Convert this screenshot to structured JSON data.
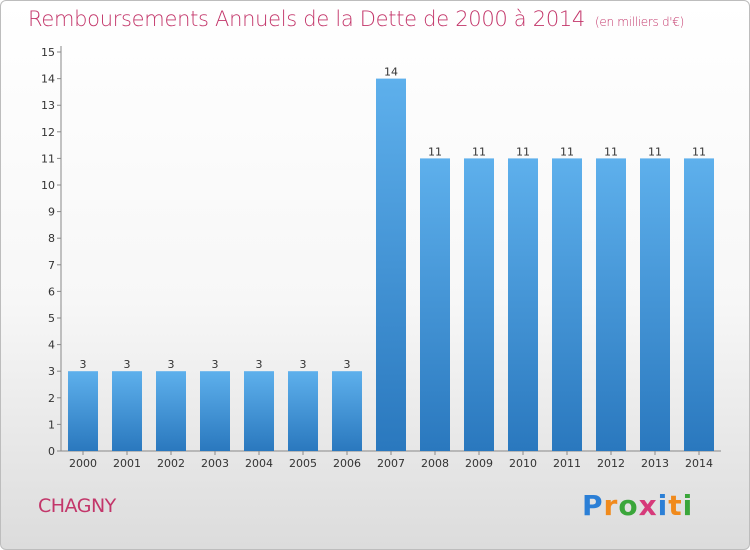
{
  "title": "Remboursements Annuels de la Dette de 2000 à 2014",
  "unit_note": "(en milliers d'€)",
  "city": "CHAGNY",
  "logo": {
    "text": "Proxiti",
    "letters": [
      {
        "ch": "P",
        "color": "#2b7fd6"
      },
      {
        "ch": "r",
        "color": "#f08a1c"
      },
      {
        "ch": "o",
        "color": "#3aa63a"
      },
      {
        "ch": "x",
        "color": "#d63a7a"
      },
      {
        "ch": "i",
        "color": "#2b7fd6"
      },
      {
        "ch": "t",
        "color": "#f08a1c"
      },
      {
        "ch": "i",
        "color": "#3aa63a"
      }
    ]
  },
  "colors": {
    "bar_light": "#5eb0ec",
    "bar_dark": "#2a78be",
    "title": "#c3366a",
    "axis": "#333333"
  },
  "chart_data": {
    "type": "bar",
    "title": "Remboursements Annuels de la Dette de 2000 à 2014",
    "ylabel": "",
    "xlabel": "",
    "categories": [
      "2000",
      "2001",
      "2002",
      "2003",
      "2004",
      "2005",
      "2006",
      "2007",
      "2008",
      "2009",
      "2010",
      "2011",
      "2012",
      "2013",
      "2014"
    ],
    "values": [
      3,
      3,
      3,
      3,
      3,
      3,
      3,
      14,
      11,
      11,
      11,
      11,
      11,
      11,
      11
    ],
    "ylim": [
      0,
      15
    ],
    "yticks": [
      0,
      1,
      2,
      3,
      4,
      5,
      6,
      7,
      8,
      9,
      10,
      11,
      12,
      13,
      14,
      15
    ],
    "grid": false,
    "legend": "none"
  }
}
